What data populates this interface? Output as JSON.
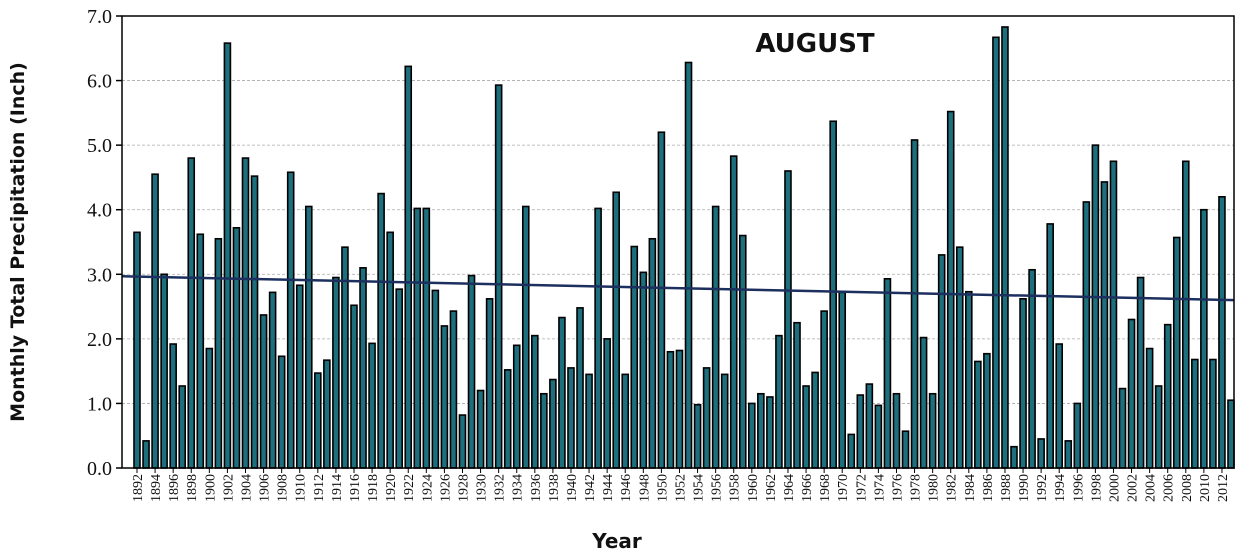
{
  "chart_data": {
    "type": "bar",
    "title": "AUGUST",
    "x_label": "Year",
    "y_label": "Monthly Total Precipitation (Inch)",
    "categories": [
      "1892",
      null,
      "1894",
      null,
      "1896",
      null,
      "1898",
      null,
      "1900",
      null,
      "1902",
      null,
      "1904",
      null,
      "1906",
      null,
      "1908",
      null,
      "1910",
      null,
      "1912",
      null,
      "1914",
      null,
      "1916",
      null,
      "1918",
      null,
      "1920",
      null,
      "1922",
      null,
      "1924",
      null,
      "1926",
      null,
      "1928",
      null,
      "1930",
      null,
      "1932",
      null,
      "1934",
      null,
      "1936",
      null,
      "1938",
      null,
      "1940",
      null,
      "1942",
      null,
      "1944",
      null,
      "1946",
      null,
      "1948",
      null,
      "1950",
      null,
      "1952",
      null,
      "1954",
      null,
      "1956",
      null,
      "1958",
      null,
      "1960",
      null,
      "1962",
      null,
      "1964",
      null,
      "1966",
      null,
      "1968",
      null,
      "1970",
      null,
      "1972",
      null,
      "1974",
      null,
      "1976",
      null,
      "1978",
      null,
      "1980",
      null,
      "1982",
      null,
      "1984",
      null,
      "1986",
      null,
      "1988",
      null,
      "1990",
      null,
      "1992",
      null,
      "1994",
      null,
      "1996",
      null,
      "1998",
      null,
      "2000",
      null,
      "2002",
      null,
      "2004",
      null,
      "2006",
      null,
      "2008",
      null,
      "2010",
      null,
      "2012",
      null
    ],
    "values": [
      3.65,
      0.42,
      4.55,
      3.0,
      1.92,
      1.27,
      4.8,
      3.62,
      1.85,
      3.55,
      6.58,
      3.72,
      4.8,
      4.52,
      2.37,
      2.72,
      1.73,
      4.58,
      2.83,
      4.05,
      1.47,
      1.67,
      2.95,
      3.42,
      2.52,
      3.1,
      1.93,
      4.25,
      3.65,
      2.77,
      6.22,
      4.02,
      4.02,
      2.75,
      2.2,
      2.43,
      0.82,
      2.98,
      1.2,
      2.62,
      5.93,
      1.52,
      1.9,
      4.05,
      2.05,
      1.15,
      1.37,
      2.33,
      1.55,
      2.48,
      1.45,
      4.02,
      2.0,
      4.27,
      1.45,
      3.43,
      3.03,
      3.55,
      5.2,
      1.8,
      1.82,
      6.28,
      0.98,
      1.55,
      4.05,
      1.45,
      4.83,
      3.6,
      1.0,
      1.15,
      1.1,
      2.05,
      4.6,
      2.25,
      1.27,
      1.48,
      2.43,
      5.37,
      2.72,
      0.52,
      1.13,
      1.3,
      0.97,
      2.93,
      1.15,
      0.57,
      5.08,
      2.02,
      1.15,
      3.3,
      5.52,
      3.42,
      2.73,
      1.65,
      1.77,
      6.67,
      6.83,
      0.33,
      2.62,
      3.07,
      0.45,
      3.78,
      1.92,
      0.42,
      1.0,
      4.12,
      5.0,
      4.43,
      4.75,
      1.23,
      2.3,
      2.95,
      1.85,
      1.27,
      2.22,
      3.57,
      4.75,
      1.68,
      4.0,
      1.68,
      4.2,
      1.05
    ],
    "color": "#1d6f7e",
    "trend_line": {
      "start": 2.97,
      "end": 2.6,
      "color": "#1c2f5e"
    },
    "ylim": [
      0,
      7
    ],
    "yticks": [
      {
        "value": 0,
        "label": "0.0"
      },
      {
        "value": 1,
        "label": "1.0"
      },
      {
        "value": 2,
        "label": "2.0"
      },
      {
        "value": 3,
        "label": "3.0"
      },
      {
        "value": 4,
        "label": "4.0"
      },
      {
        "value": 5,
        "label": "5.0"
      },
      {
        "value": 6,
        "label": "6.0"
      },
      {
        "value": 7,
        "label": "7.0"
      }
    ],
    "grid": true
  }
}
